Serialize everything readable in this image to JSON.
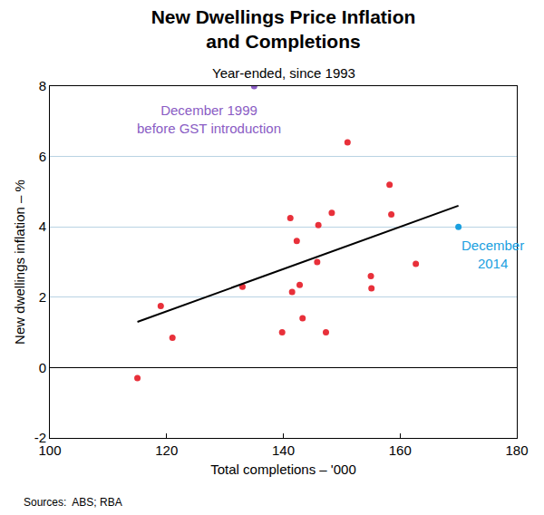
{
  "chart_data": {
    "type": "scatter",
    "title": "New Dwellings Price Inflation\nand Completions",
    "subtitle": "Year-ended, since 1993",
    "x_label": "Total completions – '000",
    "y_label": "New dwellings inflation – %",
    "source": "Sources:  ABS; RBA",
    "xlim": [
      100,
      180
    ],
    "xticks": [
      100,
      120,
      140,
      160,
      180
    ],
    "ylim": [
      -2,
      8
    ],
    "yticks": [
      -2,
      0,
      2,
      4,
      6,
      8
    ],
    "grid": true,
    "series": [
      {
        "type": "scatter",
        "color": "#e8303a",
        "x": [
          115,
          119,
          121,
          133,
          139.8,
          141.2,
          141.5,
          142.3,
          142.8,
          143.3,
          145.8,
          146.0,
          147.3,
          148.3,
          151,
          155,
          155.1,
          158.2,
          158.5,
          162.7
        ],
        "values": [
          -0.3,
          1.75,
          0.85,
          2.3,
          1.0,
          4.25,
          2.15,
          3.6,
          2.35,
          1.4,
          3.0,
          4.05,
          1.0,
          4.4,
          6.4,
          2.6,
          2.25,
          5.2,
          4.35,
          2.95
        ]
      },
      {
        "type": "scatter",
        "color": "#8a5cc4",
        "label": "December 1999\nbefore GST introduction",
        "x": [
          135
        ],
        "values": [
          8.0
        ]
      },
      {
        "type": "scatter",
        "color": "#1aa0e0",
        "label": "December\n2014",
        "x": [
          170
        ],
        "values": [
          4.0
        ]
      },
      {
        "type": "line",
        "color": "#000000",
        "x": [
          115,
          170
        ],
        "values": [
          1.3,
          4.6
        ]
      }
    ]
  }
}
